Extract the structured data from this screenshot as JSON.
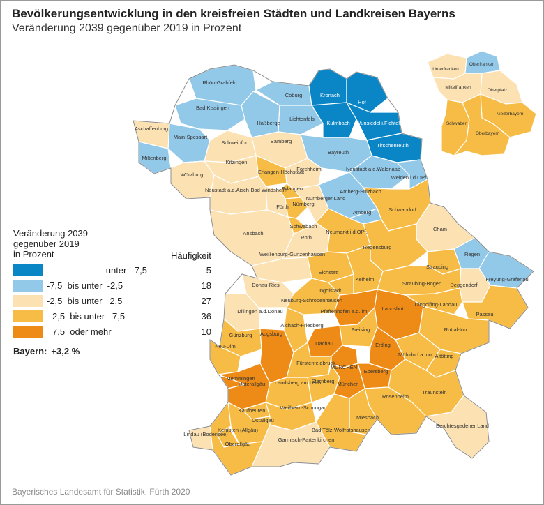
{
  "title": "Bevölkerungsentwicklung in den kreisfreien Städten und Landkreisen Bayerns",
  "subtitle": "Veränderung 2039 gegenüber 2019 in Prozent",
  "source": "Bayerisches Landesamt für Statistik, Fürth 2020",
  "colors": {
    "dark_blue": "#0a86c7",
    "light_blue": "#92c8e8",
    "cream": "#fce1b2",
    "light_orange": "#f7bc45",
    "dark_orange": "#ed8b16",
    "border": "#ffffff",
    "outline": "#8c8c8c"
  },
  "legend": {
    "title_line1": "Veränderung 2039",
    "title_line2": "gegenüber 2019",
    "title_line3": "in Prozent",
    "frequency_header": "Häufigkeit",
    "classes": [
      {
        "range": "unter  -7,5",
        "count": "5",
        "color": "#0a86c7"
      },
      {
        "range": "-7,5  bis unter  -2,5",
        "count": "18",
        "color": "#92c8e8"
      },
      {
        "range": "-2,5  bis unter   2,5",
        "count": "27",
        "color": "#fce1b2"
      },
      {
        "range": "2,5  bis unter   7,5",
        "count": "36",
        "color": "#f7bc45"
      },
      {
        "range": "7,5  oder mehr",
        "count": "10",
        "color": "#ed8b16"
      }
    ]
  },
  "bavaria": {
    "label": "Bayern:",
    "value": "+3,2 %"
  },
  "regions": [
    {
      "name": "Rhön-Grabfeld",
      "class": 1
    },
    {
      "name": "Bad Kissingen",
      "class": 1
    },
    {
      "name": "Coburg",
      "class": 1
    },
    {
      "name": "Kronach",
      "class": 0
    },
    {
      "name": "Hof",
      "class": 0
    },
    {
      "name": "Haßberge",
      "class": 1
    },
    {
      "name": "Lichtenfels",
      "class": 1
    },
    {
      "name": "Kulmbach",
      "class": 0
    },
    {
      "name": "Wunsiedel i.Fichtelgeb.",
      "class": 0
    },
    {
      "name": "Tirschenreuth",
      "class": 0
    },
    {
      "name": "Aschaffenburg",
      "class": 2
    },
    {
      "name": "Main-Spessart",
      "class": 1
    },
    {
      "name": "Miltenberg",
      "class": 1
    },
    {
      "name": "Schweinfurt",
      "class": 2
    },
    {
      "name": "Bamberg",
      "class": 2
    },
    {
      "name": "Bayreuth",
      "class": 1
    },
    {
      "name": "Kitzingen",
      "class": 2
    },
    {
      "name": "Würzburg",
      "class": 2
    },
    {
      "name": "Erlangen-Höchstadt",
      "class": 3
    },
    {
      "name": "Forchheim",
      "class": 2
    },
    {
      "name": "Neustadt a.d.Waldnaab",
      "class": 1
    },
    {
      "name": "Weiden i.d.OPf.",
      "class": 1
    },
    {
      "name": "Erlangen",
      "class": 3
    },
    {
      "name": "Neustadt a.d.Aisch-Bad Windsheim",
      "class": 2
    },
    {
      "name": "Amberg-Sulzbach",
      "class": 1
    },
    {
      "name": "Fürth",
      "class": 2
    },
    {
      "name": "Nürnberg",
      "class": 3
    },
    {
      "name": "Nürnberger Land",
      "class": 2
    },
    {
      "name": "Amberg",
      "class": 1
    },
    {
      "name": "Schwandorf",
      "class": 3
    },
    {
      "name": "Schwabach",
      "class": 3
    },
    {
      "name": "Ansbach",
      "class": 2
    },
    {
      "name": "Roth",
      "class": 2
    },
    {
      "name": "Neumarkt i.d.OPf.",
      "class": 3
    },
    {
      "name": "Cham",
      "class": 2
    },
    {
      "name": "Regensburg",
      "class": 3
    },
    {
      "name": "Regen",
      "class": 1
    },
    {
      "name": "Weißenburg-Gunzenhausen",
      "class": 2
    },
    {
      "name": "Straubing",
      "class": 3
    },
    {
      "name": "Eichstätt",
      "class": 3
    },
    {
      "name": "Kelheim",
      "class": 3
    },
    {
      "name": "Freyung-Grafenau",
      "class": 1
    },
    {
      "name": "Donau-Ries",
      "class": 2
    },
    {
      "name": "Ingolstadt",
      "class": 3
    },
    {
      "name": "Straubing-Bogen",
      "class": 3
    },
    {
      "name": "Deggendorf",
      "class": 2
    },
    {
      "name": "Neuburg-Schrobenhausen",
      "class": 3
    },
    {
      "name": "Landshut",
      "class": 4
    },
    {
      "name": "Dingolfing-Landau",
      "class": 3
    },
    {
      "name": "Passau",
      "class": 3
    },
    {
      "name": "Dillingen a.d.Donau",
      "class": 2
    },
    {
      "name": "Pfaffenhofen a.d.Ilm",
      "class": 4
    },
    {
      "name": "Aichach-Friedberg",
      "class": 3
    },
    {
      "name": "Rottal-Inn",
      "class": 3
    },
    {
      "name": "Günzburg",
      "class": 3
    },
    {
      "name": "Augsburg",
      "class": 4
    },
    {
      "name": "Freising",
      "class": 3
    },
    {
      "name": "Neu-Ulm",
      "class": 3
    },
    {
      "name": "Dachau",
      "class": 4
    },
    {
      "name": "Erding",
      "class": 4
    },
    {
      "name": "Mühldorf a.Inn",
      "class": 3
    },
    {
      "name": "Fürstenfeldbruck",
      "class": 3
    },
    {
      "name": "Altötting",
      "class": 3
    },
    {
      "name": "MÜNCHEN",
      "class": 4
    },
    {
      "name": "Memmingen",
      "class": 4
    },
    {
      "name": "Ebersberg",
      "class": 4
    },
    {
      "name": "Unterallgäu",
      "class": 4
    },
    {
      "name": "Landsberg am Lech",
      "class": 3
    },
    {
      "name": "Starnberg",
      "class": 3
    },
    {
      "name": "München",
      "class": 4
    },
    {
      "name": "Traunstein",
      "class": 3
    },
    {
      "name": "Rosenheim",
      "class": 3
    },
    {
      "name": "Kaufbeuren",
      "class": 3
    },
    {
      "name": "Weilheim-Schongau",
      "class": 3
    },
    {
      "name": "Ostallgäu",
      "class": 3
    },
    {
      "name": "Miesbach",
      "class": 3
    },
    {
      "name": "Kempten (Allgäu)",
      "class": 3
    },
    {
      "name": "Bad Tölz-Wolfratshausen",
      "class": 3
    },
    {
      "name": "Berchtesgadener Land",
      "class": 2
    },
    {
      "name": "Lindau (Bodensee)",
      "class": 2
    },
    {
      "name": "Oberallgäu",
      "class": 3
    },
    {
      "name": "Garmisch-Partenkirchen",
      "class": 2
    }
  ],
  "inset": [
    {
      "name": "Unterfranken",
      "class": 2
    },
    {
      "name": "Oberfranken",
      "class": 1
    },
    {
      "name": "Mittelfranken",
      "class": 2
    },
    {
      "name": "Oberpfalz",
      "class": 2
    },
    {
      "name": "Niederbayern",
      "class": 3
    },
    {
      "name": "Schwaben",
      "class": 3
    },
    {
      "name": "Oberbayern",
      "class": 3
    }
  ]
}
